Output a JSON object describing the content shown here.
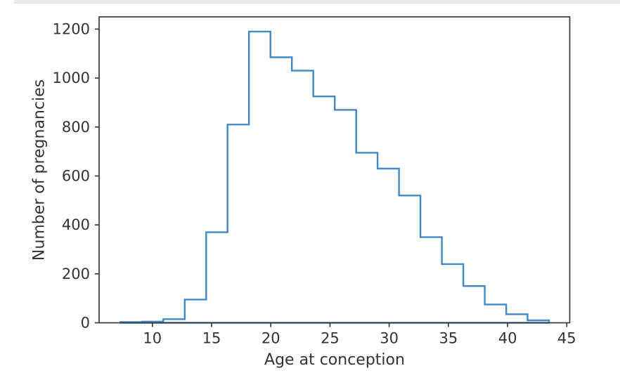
{
  "window": {
    "top_strip": {
      "color": "#ececec",
      "border_color": "#dadada"
    }
  },
  "chart_data": {
    "type": "bar",
    "subtype": "histogram-step",
    "title": "",
    "xlabel": "Age at conception",
    "ylabel": "Number of pregnancies",
    "bin_edges": [
      7.3,
      9.11,
      10.92,
      12.73,
      14.54,
      16.35,
      18.16,
      19.97,
      21.78,
      23.59,
      25.4,
      27.21,
      29.02,
      30.83,
      32.64,
      34.45,
      36.26,
      38.07,
      39.88,
      41.69,
      43.5
    ],
    "counts": [
      3,
      5,
      15,
      95,
      370,
      810,
      1190,
      1085,
      1030,
      925,
      870,
      695,
      630,
      520,
      350,
      240,
      150,
      75,
      35,
      10
    ],
    "xlim": [
      5.5,
      45.25
    ],
    "ylim": [
      0,
      1250
    ],
    "x_ticks": [
      10,
      15,
      20,
      25,
      30,
      35,
      40,
      45
    ],
    "y_ticks": [
      0,
      200,
      400,
      600,
      800,
      1000,
      1200
    ],
    "grid": false,
    "legend": "none",
    "colors": {
      "line": "#4288c5",
      "spine": "#3a3a3a",
      "text": "#333333",
      "background": "#ffffff"
    }
  }
}
